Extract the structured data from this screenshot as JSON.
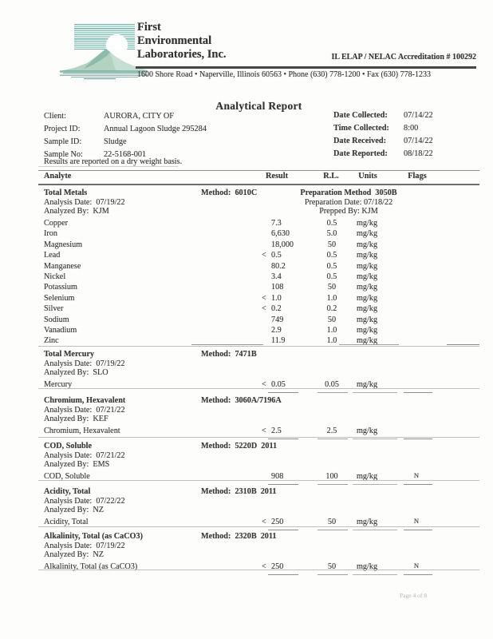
{
  "header": {
    "company_lines": [
      "First",
      "Environmental",
      "Laboratories, Inc."
    ],
    "accreditation": "IL ELAP / NELAC Accreditation # 100292",
    "address": "1600 Shore Road • Naperville, Illinois 60563 • Phone (630) 778-1200 • Fax (630) 778-1233",
    "logo_icon": "mountain-lake-sunrise-logo"
  },
  "report": {
    "title": "Analytical Report",
    "info_left": [
      {
        "label": "Client:",
        "value": "AURORA, CITY OF"
      },
      {
        "label": "Project ID:",
        "value": "Annual Lagoon Sludge  295284"
      },
      {
        "label": "Sample ID:",
        "value": "Sludge"
      },
      {
        "label": "Sample No:",
        "value": "22-5168-001"
      }
    ],
    "info_right": [
      {
        "label": "Date Collected:",
        "value": "07/14/22"
      },
      {
        "label": "Time Collected:",
        "value": "8:00"
      },
      {
        "label": "Date Received:",
        "value": "07/14/22"
      },
      {
        "label": "Date Reported:",
        "value": "08/18/22"
      }
    ],
    "note": "Results are reported on a dry weight basis.",
    "columns": [
      "Analyte",
      "Result",
      "R.L.",
      "Units",
      "Flags"
    ]
  },
  "sections": [
    {
      "title": "Total Metals",
      "method_label": "Method:",
      "method": "6010C",
      "meta": [
        "Analysis Date:  07/19/22",
        "Analyzed By:  KJM"
      ],
      "prep": [
        "Preparation Method  3050B",
        "Preparation Date: 07/18/22",
        "Prepped By: KJM"
      ],
      "rows": [
        {
          "analyte": "Copper",
          "qualifier": "",
          "result": "7.3",
          "rl": "0.5",
          "units": "mg/kg",
          "flag": ""
        },
        {
          "analyte": "Iron",
          "qualifier": "",
          "result": "6,630",
          "rl": "5.0",
          "units": "mg/kg",
          "flag": ""
        },
        {
          "analyte": "Magnesium",
          "qualifier": "",
          "result": "18,000",
          "rl": "50",
          "units": "mg/kg",
          "flag": ""
        },
        {
          "analyte": "Lead",
          "qualifier": "<",
          "result": "0.5",
          "rl": "0.5",
          "units": "mg/kg",
          "flag": ""
        },
        {
          "analyte": "Manganese",
          "qualifier": "",
          "result": "80.2",
          "rl": "0.5",
          "units": "mg/kg",
          "flag": ""
        },
        {
          "analyte": "Nickel",
          "qualifier": "",
          "result": "3.4",
          "rl": "0.5",
          "units": "mg/kg",
          "flag": ""
        },
        {
          "analyte": "Potassium",
          "qualifier": "",
          "result": "108",
          "rl": "50",
          "units": "mg/kg",
          "flag": ""
        },
        {
          "analyte": "Selenium",
          "qualifier": "<",
          "result": "1.0",
          "rl": "1.0",
          "units": "mg/kg",
          "flag": ""
        },
        {
          "analyte": "Silver",
          "qualifier": "<",
          "result": "0.2",
          "rl": "0.2",
          "units": "mg/kg",
          "flag": ""
        },
        {
          "analyte": "Sodium",
          "qualifier": "",
          "result": "749",
          "rl": "50",
          "units": "mg/kg",
          "flag": ""
        },
        {
          "analyte": "Vanadium",
          "qualifier": "",
          "result": "2.9",
          "rl": "1.0",
          "units": "mg/kg",
          "flag": ""
        },
        {
          "analyte": "Zinc",
          "qualifier": "",
          "result": "11.9",
          "rl": "1.0",
          "units": "mg/kg",
          "flag": ""
        }
      ]
    },
    {
      "title": "Total Mercury",
      "method_label": "Method:",
      "method": "7471B",
      "meta": [
        "Analysis Date:  07/19/22",
        "Analyzed By:  SLO"
      ],
      "prep": [],
      "rows": [
        {
          "analyte": "Mercury",
          "qualifier": "<",
          "result": "0.05",
          "rl": "0.05",
          "units": "mg/kg",
          "flag": ""
        }
      ]
    },
    {
      "title": "Chromium, Hexavalent",
      "method_label": "Method:",
      "method": "3060A/7196A",
      "meta": [
        "Analysis Date:  07/21/22",
        "Analyzed By:  KEF"
      ],
      "prep": [],
      "rows": [
        {
          "analyte": "Chromium, Hexavalent",
          "qualifier": "<",
          "result": "2.5",
          "rl": "2.5",
          "units": "mg/kg",
          "flag": ""
        }
      ]
    },
    {
      "title": "COD, Soluble",
      "method_label": "Method:",
      "method": "5220D  2011",
      "meta": [
        "Analysis Date:  07/21/22",
        "Analyzed By:  EMS"
      ],
      "prep": [],
      "rows": [
        {
          "analyte": "COD, Soluble",
          "qualifier": "",
          "result": "908",
          "rl": "100",
          "units": "mg/kg",
          "flag": "N"
        }
      ]
    },
    {
      "title": "Acidity, Total",
      "method_label": "Method:",
      "method": "2310B  2011",
      "meta": [
        "Analysis Date:  07/22/22",
        "Analyzed By:  NZ"
      ],
      "prep": [],
      "rows": [
        {
          "analyte": "Acidity, Total",
          "qualifier": "<",
          "result": "250",
          "rl": "50",
          "units": "mg/kg",
          "flag": "N"
        }
      ]
    },
    {
      "title": "Alkalinity, Total (as CaCO3)",
      "method_label": "Method:",
      "method": "2320B  2011",
      "meta": [
        "Analysis Date:  07/19/22",
        "Analyzed By:  NZ"
      ],
      "prep": [],
      "rows": [
        {
          "analyte": "Alkalinity, Total (as CaCO3)",
          "qualifier": "<",
          "result": "250",
          "rl": "50",
          "units": "mg/kg",
          "flag": "N"
        }
      ]
    }
  ],
  "footer": {
    "page": "Page 4 of 8"
  }
}
